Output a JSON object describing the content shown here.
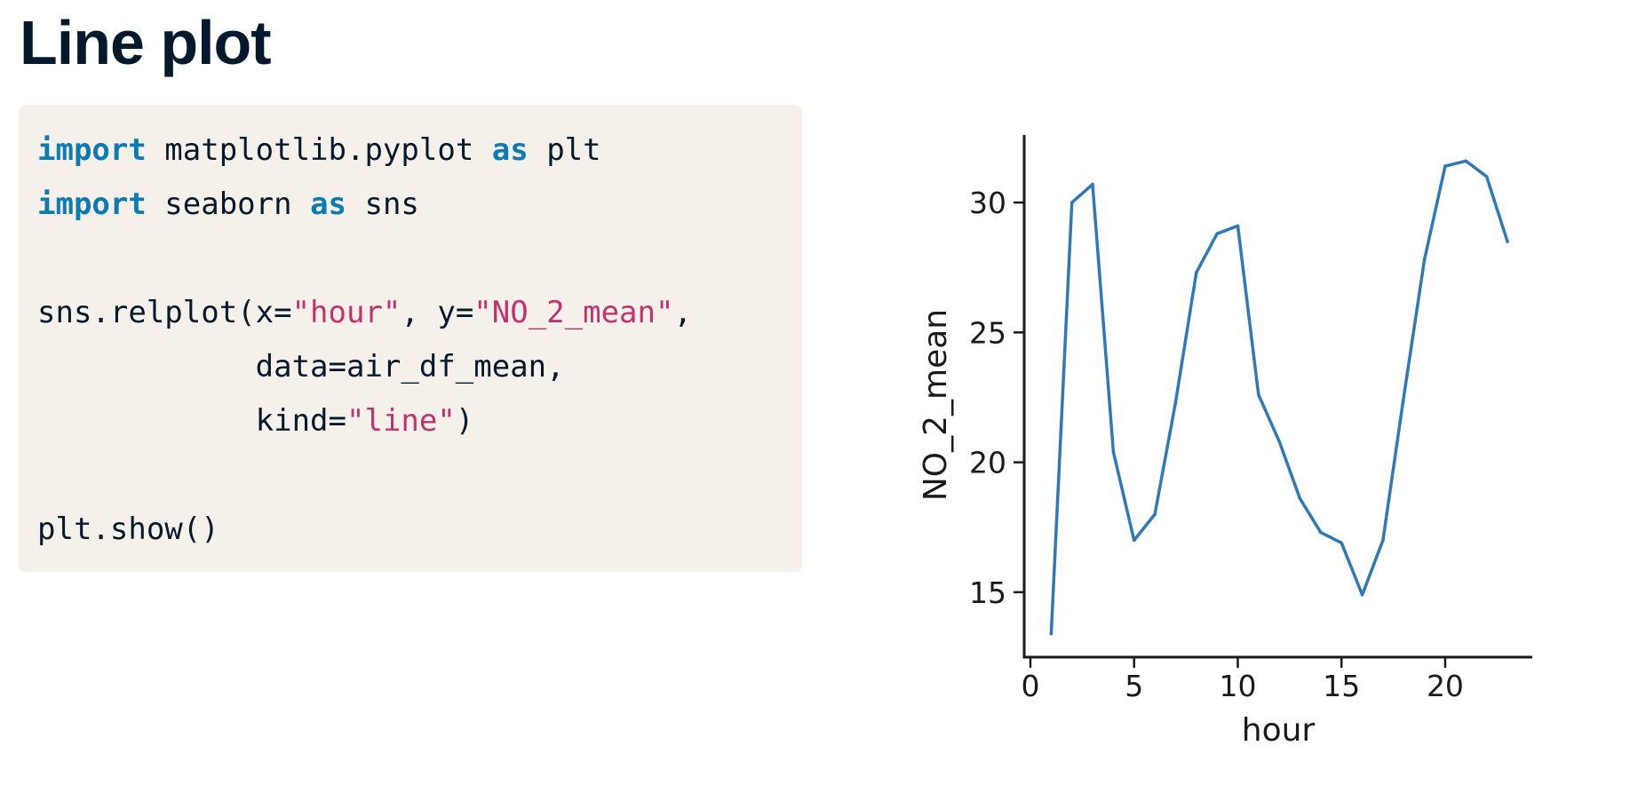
{
  "title": "Line plot",
  "colors": {
    "keyword": "#0b7bb2",
    "string": "#c0336e",
    "text": "#05192d",
    "code_background": "#f5f1ea",
    "line": "#2f7ab5"
  },
  "code": [
    {
      "tokens": [
        {
          "t": "import",
          "c": "kw"
        },
        {
          "t": " matplotlib.pyplot ",
          "c": ""
        },
        {
          "t": "as",
          "c": "kw"
        },
        {
          "t": " plt",
          "c": ""
        }
      ]
    },
    {
      "tokens": [
        {
          "t": "import",
          "c": "kw"
        },
        {
          "t": " seaborn ",
          "c": ""
        },
        {
          "t": "as",
          "c": "kw"
        },
        {
          "t": " sns",
          "c": ""
        }
      ]
    },
    {
      "tokens": []
    },
    {
      "tokens": [
        {
          "t": "sns.relplot(x=",
          "c": ""
        },
        {
          "t": "\"hour\"",
          "c": "str"
        },
        {
          "t": ", y=",
          "c": ""
        },
        {
          "t": "\"NO_2_mean\"",
          "c": "str"
        },
        {
          "t": ",",
          "c": ""
        }
      ]
    },
    {
      "tokens": [
        {
          "t": "            data=air_df_mean,",
          "c": ""
        }
      ]
    },
    {
      "tokens": [
        {
          "t": "            kind=",
          "c": ""
        },
        {
          "t": "\"line\"",
          "c": "str"
        },
        {
          "t": ")",
          "c": ""
        }
      ]
    },
    {
      "tokens": []
    },
    {
      "tokens": [
        {
          "t": "plt.show()",
          "c": ""
        }
      ]
    }
  ],
  "chart_data": {
    "type": "line",
    "xlabel": "hour",
    "ylabel": "NO_2_mean",
    "xlim": [
      -0.3,
      24.2
    ],
    "ylim": [
      12.5,
      32.6
    ],
    "xticks": [
      0,
      5,
      10,
      15,
      20
    ],
    "yticks": [
      15,
      20,
      25,
      30
    ],
    "grid": false,
    "series": [
      {
        "x": [
          1,
          2,
          3,
          4,
          5,
          6,
          7,
          8,
          9,
          10,
          11,
          12,
          13,
          14,
          15,
          16,
          17,
          18,
          19,
          20,
          21,
          22,
          23
        ],
        "y": [
          13.4,
          30.0,
          30.7,
          20.4,
          17.0,
          18.0,
          22.3,
          27.3,
          28.8,
          29.1,
          22.6,
          20.8,
          18.6,
          17.3,
          16.9,
          14.9,
          17.0,
          22.5,
          27.8,
          31.4,
          31.6,
          31.0,
          28.5
        ]
      }
    ]
  }
}
